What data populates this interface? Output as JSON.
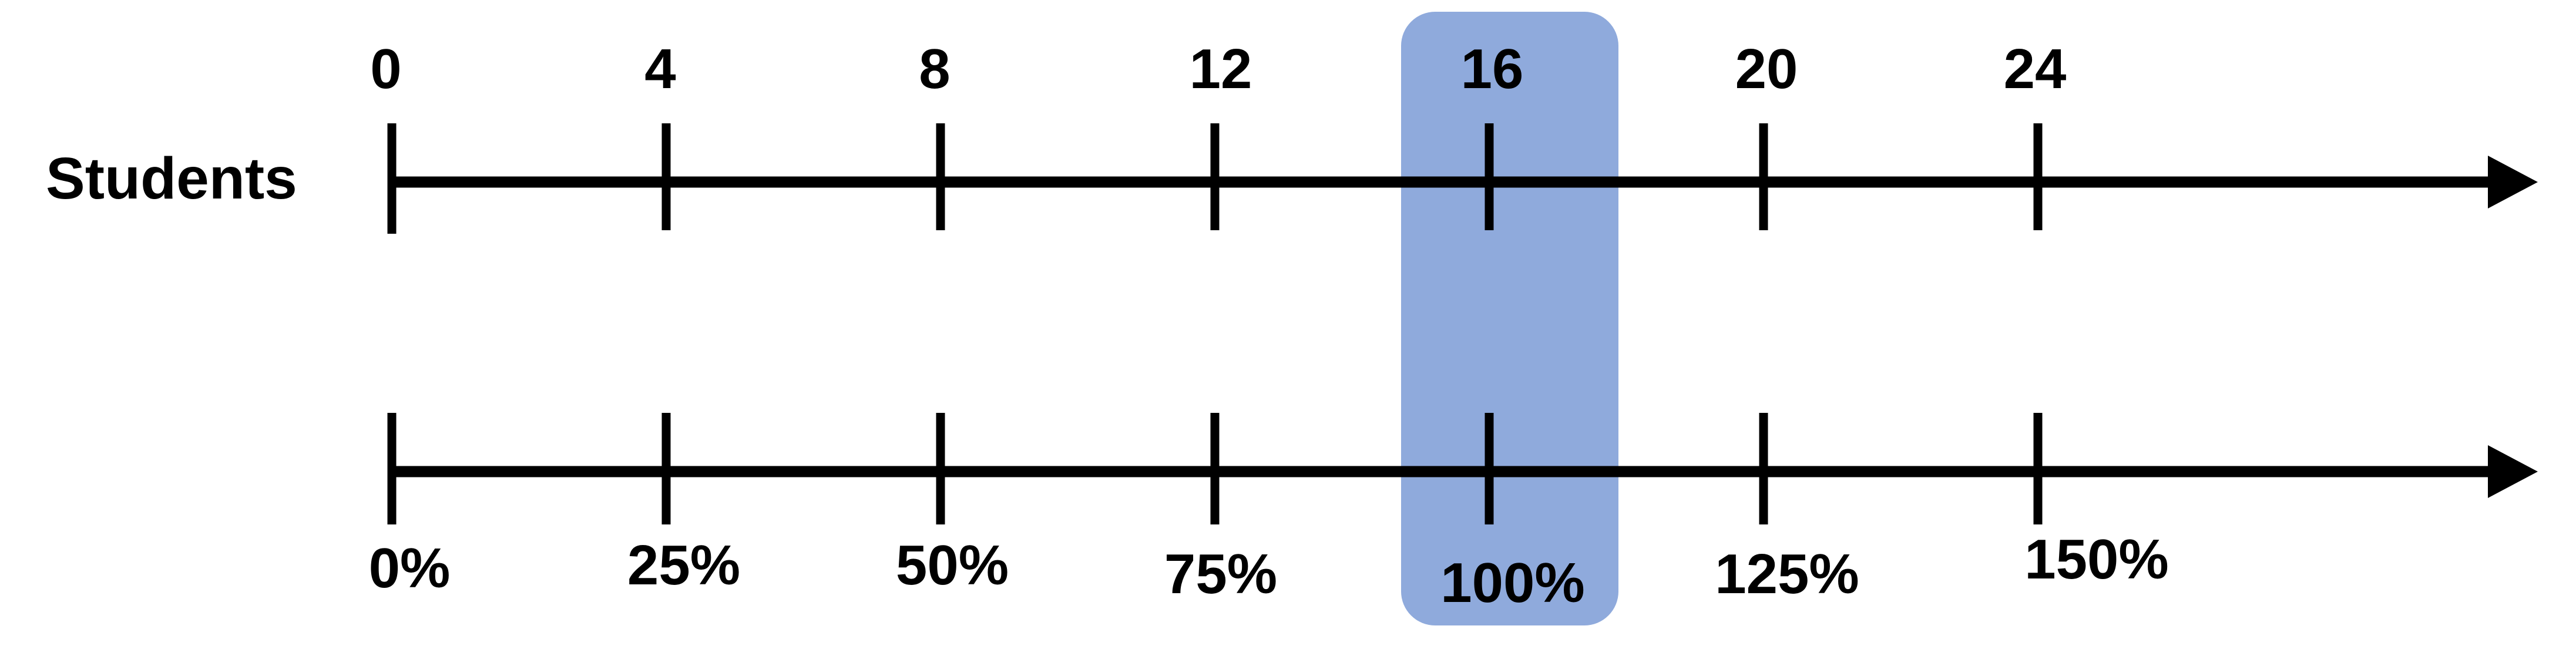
{
  "row_label": "Students",
  "highlight_color": "#8FAADC",
  "line_color": "#000000",
  "top_line": {
    "ticks": [
      "0",
      "4",
      "8",
      "12",
      "16",
      "20",
      "24"
    ]
  },
  "bottom_line": {
    "ticks": [
      "0%",
      "25%",
      "50%",
      "75%",
      "100%",
      "125%",
      "150%"
    ]
  },
  "highlighted_tick_index": 4
}
